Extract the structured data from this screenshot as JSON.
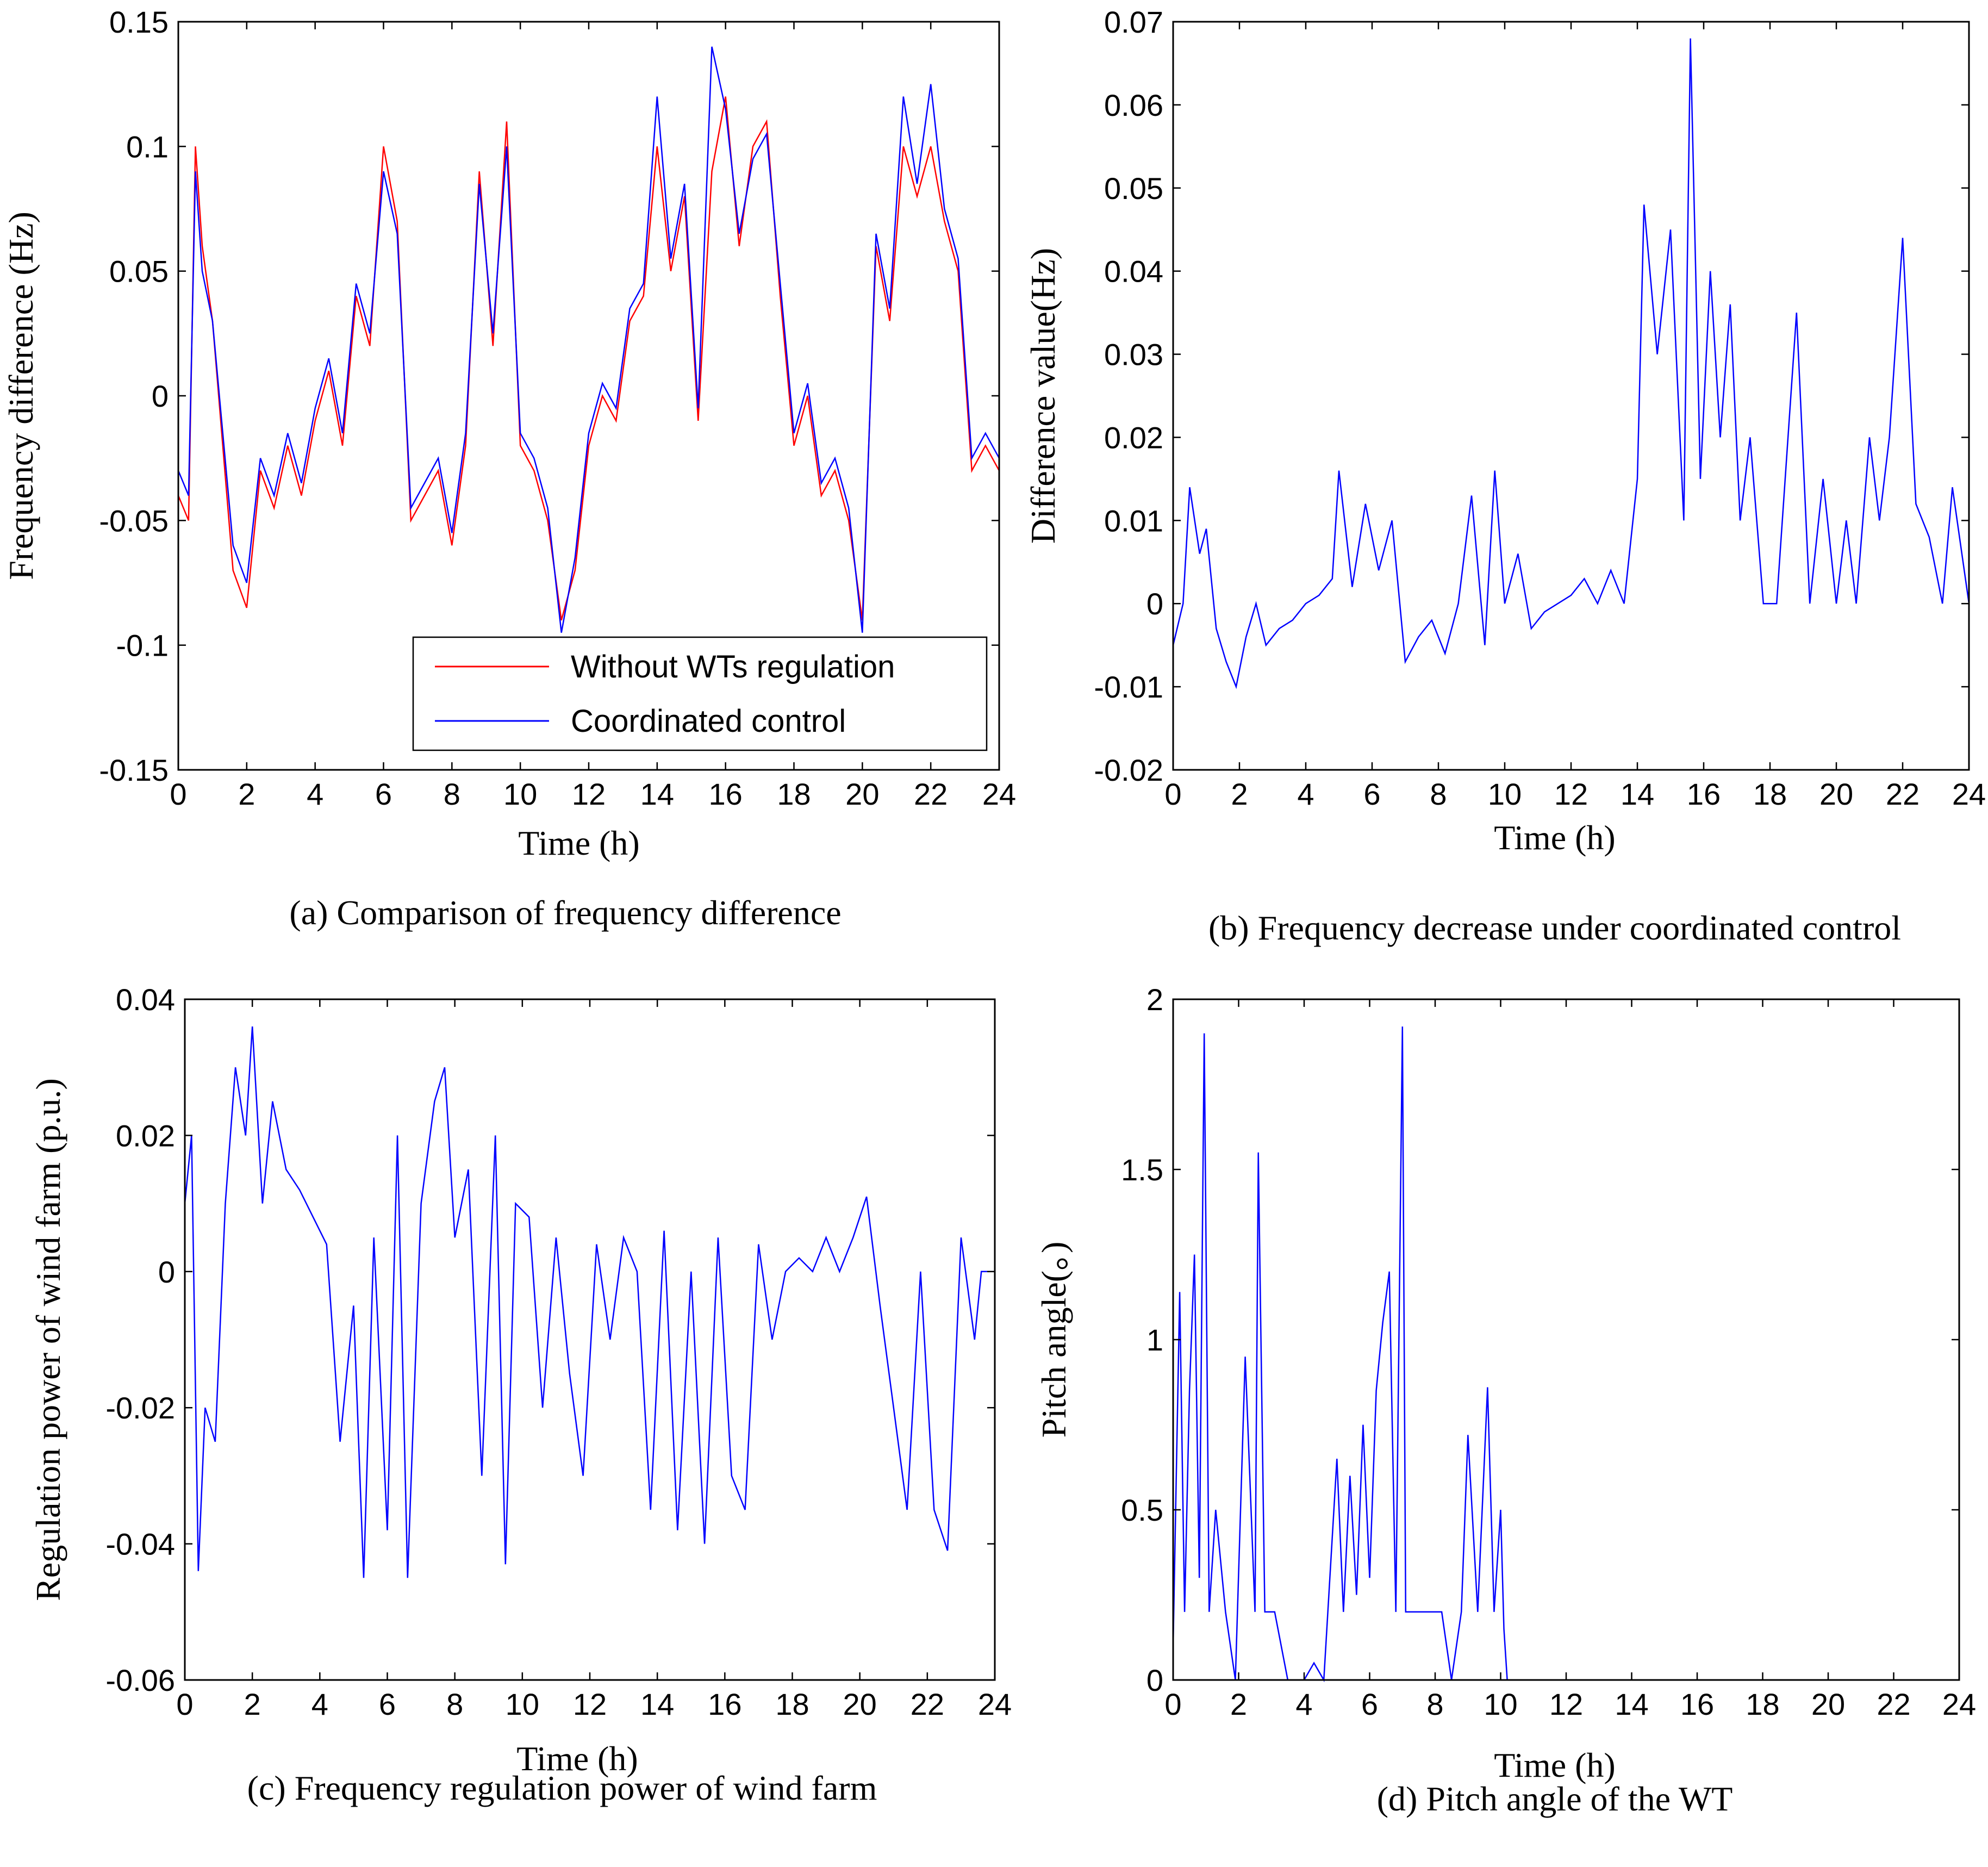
{
  "chart_data": [
    {
      "type": "line",
      "panel": "a",
      "caption": "(a)  Comparison of frequency difference",
      "xlabel": "Time (h)",
      "ylabel": "Frequency difference (Hz)",
      "xlim": [
        0,
        24
      ],
      "ylim": [
        -0.15,
        0.15
      ],
      "xticks": [
        "0",
        "2",
        "4",
        "6",
        "8",
        "10",
        "12",
        "14",
        "16",
        "18",
        "20",
        "22",
        "24"
      ],
      "yticks": [
        "-0.15",
        "-0.1",
        "-0.05",
        "0",
        "0.05",
        "0.1",
        "0.15"
      ],
      "legend_position": "bottom-right",
      "series": [
        {
          "name": "Without WTs regulation",
          "color": "#ff0000",
          "x": [
            0,
            0.3,
            0.5,
            0.7,
            1.0,
            1.3,
            1.6,
            2.0,
            2.4,
            2.8,
            3.2,
            3.6,
            4.0,
            4.4,
            4.8,
            5.2,
            5.6,
            6.0,
            6.4,
            6.8,
            7.2,
            7.6,
            8.0,
            8.4,
            8.8,
            9.2,
            9.6,
            10.0,
            10.4,
            10.8,
            11.2,
            11.6,
            12.0,
            12.4,
            12.8,
            13.2,
            13.6,
            14.0,
            14.4,
            14.8,
            15.2,
            15.6,
            16.0,
            16.4,
            16.8,
            17.2,
            17.6,
            18.0,
            18.4,
            18.8,
            19.2,
            19.6,
            20.0,
            20.4,
            20.8,
            21.2,
            21.6,
            22.0,
            22.4,
            22.8,
            23.2,
            23.6,
            24.0
          ],
          "values": [
            -0.04,
            -0.05,
            0.1,
            0.06,
            0.03,
            -0.02,
            -0.07,
            -0.085,
            -0.03,
            -0.045,
            -0.02,
            -0.04,
            -0.01,
            0.01,
            -0.02,
            0.04,
            0.02,
            0.1,
            0.07,
            -0.05,
            -0.04,
            -0.03,
            -0.06,
            -0.02,
            0.09,
            0.02,
            0.11,
            -0.02,
            -0.03,
            -0.05,
            -0.09,
            -0.07,
            -0.02,
            0.0,
            -0.01,
            0.03,
            0.04,
            0.1,
            0.05,
            0.08,
            -0.01,
            0.09,
            0.12,
            0.06,
            0.1,
            0.11,
            0.04,
            -0.02,
            0.0,
            -0.04,
            -0.03,
            -0.05,
            -0.09,
            0.06,
            0.03,
            0.1,
            0.08,
            0.1,
            0.07,
            0.05,
            -0.03,
            -0.02,
            -0.03
          ]
        },
        {
          "name": "Coordinated control",
          "color": "#0000ff",
          "x": [
            0,
            0.3,
            0.5,
            0.7,
            1.0,
            1.3,
            1.6,
            2.0,
            2.4,
            2.8,
            3.2,
            3.6,
            4.0,
            4.4,
            4.8,
            5.2,
            5.6,
            6.0,
            6.4,
            6.8,
            7.2,
            7.6,
            8.0,
            8.4,
            8.8,
            9.2,
            9.6,
            10.0,
            10.4,
            10.8,
            11.2,
            11.6,
            12.0,
            12.4,
            12.8,
            13.2,
            13.6,
            14.0,
            14.4,
            14.8,
            15.2,
            15.6,
            16.0,
            16.4,
            16.8,
            17.2,
            17.6,
            18.0,
            18.4,
            18.8,
            19.2,
            19.6,
            20.0,
            20.4,
            20.8,
            21.2,
            21.6,
            22.0,
            22.4,
            22.8,
            23.2,
            23.6,
            24.0
          ],
          "values": [
            -0.03,
            -0.04,
            0.09,
            0.05,
            0.03,
            -0.015,
            -0.06,
            -0.075,
            -0.025,
            -0.04,
            -0.015,
            -0.035,
            -0.005,
            0.015,
            -0.015,
            0.045,
            0.025,
            0.09,
            0.065,
            -0.045,
            -0.035,
            -0.025,
            -0.055,
            -0.015,
            0.085,
            0.025,
            0.1,
            -0.015,
            -0.025,
            -0.045,
            -0.095,
            -0.065,
            -0.015,
            0.005,
            -0.005,
            0.035,
            0.045,
            0.12,
            0.055,
            0.085,
            -0.005,
            0.14,
            0.115,
            0.065,
            0.095,
            0.105,
            0.045,
            -0.015,
            0.005,
            -0.035,
            -0.025,
            -0.045,
            -0.095,
            0.065,
            0.035,
            0.12,
            0.085,
            0.125,
            0.075,
            0.055,
            -0.025,
            -0.015,
            -0.025
          ]
        }
      ]
    },
    {
      "type": "line",
      "panel": "b",
      "caption": "(b)  Frequency decrease  under coordinated control",
      "xlabel": "Time (h)",
      "ylabel": "Difference value(Hz)",
      "xlim": [
        0,
        24
      ],
      "ylim": [
        -0.02,
        0.07
      ],
      "xticks": [
        "0",
        "2",
        "4",
        "6",
        "8",
        "10",
        "12",
        "14",
        "16",
        "18",
        "20",
        "22",
        "24"
      ],
      "yticks": [
        "-0.02",
        "-0.01",
        "0",
        "0.01",
        "0.02",
        "0.03",
        "0.04",
        "0.05",
        "0.06",
        "0.07"
      ],
      "series": [
        {
          "name": "Difference value",
          "color": "#0000ff",
          "x": [
            0,
            0.3,
            0.5,
            0.8,
            1.0,
            1.3,
            1.6,
            1.9,
            2.2,
            2.5,
            2.8,
            3.2,
            3.6,
            4.0,
            4.4,
            4.8,
            5.0,
            5.4,
            5.8,
            6.2,
            6.6,
            7.0,
            7.4,
            7.8,
            8.2,
            8.6,
            9.0,
            9.4,
            9.7,
            10.0,
            10.4,
            10.8,
            11.2,
            11.6,
            12.0,
            12.4,
            12.8,
            13.2,
            13.6,
            14.0,
            14.2,
            14.6,
            15.0,
            15.4,
            15.6,
            15.9,
            16.2,
            16.5,
            16.8,
            17.1,
            17.4,
            17.8,
            18.2,
            18.8,
            19.2,
            19.6,
            20.0,
            20.3,
            20.6,
            21.0,
            21.3,
            21.6,
            22.0,
            22.4,
            22.8,
            23.2,
            23.5,
            24.0
          ],
          "values": [
            -0.005,
            0.0,
            0.014,
            0.006,
            0.009,
            -0.003,
            -0.007,
            -0.01,
            -0.004,
            0.0,
            -0.005,
            -0.003,
            -0.002,
            0.0,
            0.001,
            0.003,
            0.016,
            0.002,
            0.012,
            0.004,
            0.01,
            -0.007,
            -0.004,
            -0.002,
            -0.006,
            0.0,
            0.013,
            -0.005,
            0.016,
            0.0,
            0.006,
            -0.003,
            -0.001,
            0.0,
            0.001,
            0.003,
            0.0,
            0.004,
            0.0,
            0.015,
            0.048,
            0.03,
            0.045,
            0.01,
            0.068,
            0.015,
            0.04,
            0.02,
            0.036,
            0.01,
            0.02,
            0.0,
            0.0,
            0.035,
            0.0,
            0.015,
            0.0,
            0.01,
            0.0,
            0.02,
            0.01,
            0.02,
            0.044,
            0.012,
            0.008,
            0.0,
            0.014,
            0.0
          ]
        }
      ]
    },
    {
      "type": "line",
      "panel": "c",
      "caption": "(c)  Frequency regulation power of wind farm",
      "xlabel": "Time (h)",
      "ylabel": "Regulation power of wind farm (p.u.)",
      "xlim": [
        0,
        24
      ],
      "ylim": [
        -0.06,
        0.04
      ],
      "xticks": [
        "0",
        "2",
        "4",
        "6",
        "8",
        "10",
        "12",
        "14",
        "16",
        "18",
        "20",
        "22",
        "24"
      ],
      "yticks": [
        "-0.06",
        "-0.04",
        "-0.02",
        "0",
        "0.02",
        "0.04"
      ],
      "series": [
        {
          "name": "Regulation power",
          "color": "#0000ff",
          "x": [
            0,
            0.2,
            0.4,
            0.6,
            0.9,
            1.2,
            1.5,
            1.8,
            2.0,
            2.3,
            2.6,
            3.0,
            3.4,
            3.8,
            4.2,
            4.6,
            5.0,
            5.3,
            5.6,
            6.0,
            6.3,
            6.6,
            7.0,
            7.4,
            7.7,
            8.0,
            8.4,
            8.8,
            9.2,
            9.5,
            9.8,
            10.2,
            10.6,
            11.0,
            11.4,
            11.8,
            12.2,
            12.6,
            13.0,
            13.4,
            13.8,
            14.2,
            14.6,
            15.0,
            15.4,
            15.8,
            16.2,
            16.6,
            17.0,
            17.4,
            17.8,
            18.2,
            18.6,
            19.0,
            19.4,
            19.8,
            20.2,
            20.6,
            21.0,
            21.4,
            21.8,
            22.2,
            22.6,
            23.0,
            23.4,
            23.6,
            24.0
          ],
          "values": [
            0.01,
            0.02,
            -0.044,
            -0.02,
            -0.025,
            0.01,
            0.03,
            0.02,
            0.036,
            0.01,
            0.025,
            0.015,
            0.012,
            0.008,
            0.004,
            -0.025,
            -0.005,
            -0.045,
            0.005,
            -0.038,
            0.02,
            -0.045,
            0.01,
            0.025,
            0.03,
            0.005,
            0.015,
            -0.03,
            0.02,
            -0.043,
            0.01,
            0.008,
            -0.02,
            0.005,
            -0.015,
            -0.03,
            0.004,
            -0.01,
            0.005,
            0.0,
            -0.035,
            0.006,
            -0.038,
            0.0,
            -0.04,
            0.005,
            -0.03,
            -0.035,
            0.004,
            -0.01,
            0.0,
            0.002,
            0.0,
            0.005,
            0.0,
            0.005,
            0.011,
            -0.005,
            -0.02,
            -0.035,
            0.0,
            -0.035,
            -0.041,
            0.005,
            -0.01,
            0.0,
            0.0
          ]
        }
      ]
    },
    {
      "type": "line",
      "panel": "d",
      "caption": "(d)  Pitch angle of the WT",
      "xlabel": "Time (h)",
      "ylabel": "Pitch angle(。)",
      "xlim": [
        0,
        24
      ],
      "ylim": [
        0,
        2
      ],
      "xticks": [
        "0",
        "2",
        "4",
        "6",
        "8",
        "10",
        "12",
        "14",
        "16",
        "18",
        "20",
        "22",
        "24"
      ],
      "yticks": [
        "0",
        "0.5",
        "1",
        "1.5",
        "2"
      ],
      "series": [
        {
          "name": "Pitch angle",
          "color": "#0000ff",
          "x": [
            0,
            0.2,
            0.35,
            0.5,
            0.65,
            0.8,
            0.95,
            1.1,
            1.3,
            1.6,
            1.9,
            2.2,
            2.5,
            2.6,
            2.8,
            3.1,
            3.5,
            4.0,
            4.3,
            4.6,
            5.0,
            5.2,
            5.4,
            5.6,
            5.8,
            6.0,
            6.2,
            6.4,
            6.6,
            6.8,
            7.0,
            7.1,
            7.3,
            7.6,
            7.9,
            8.2,
            8.5,
            8.8,
            9.0,
            9.3,
            9.6,
            9.8,
            10.0,
            10.1,
            10.2,
            12,
            14,
            16,
            18,
            20,
            22,
            24
          ],
          "values": [
            0.1,
            1.14,
            0.2,
            0.85,
            1.25,
            0.3,
            1.9,
            0.2,
            0.5,
            0.2,
            0.0,
            0.95,
            0.2,
            1.55,
            0.2,
            0.2,
            0.0,
            0.0,
            0.05,
            0.0,
            0.65,
            0.2,
            0.6,
            0.25,
            0.75,
            0.3,
            0.85,
            1.05,
            1.2,
            0.2,
            1.92,
            0.2,
            0.2,
            0.2,
            0.2,
            0.2,
            0.0,
            0.2,
            0.72,
            0.2,
            0.86,
            0.2,
            0.5,
            0.15,
            0.0,
            0.0,
            0.0,
            0.0,
            0.0,
            0.0,
            0.0,
            0.0
          ]
        }
      ]
    }
  ]
}
